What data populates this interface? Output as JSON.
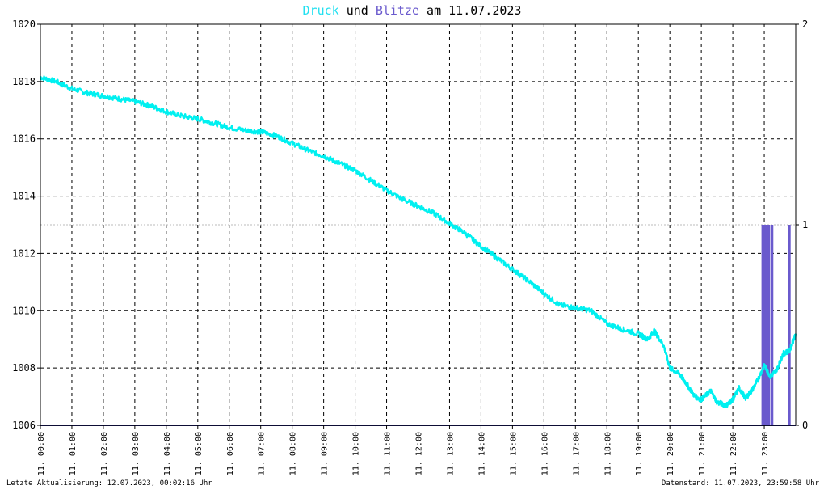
{
  "title": {
    "series1": "Druck",
    "joiner": " und ",
    "series2": "Blitze",
    "suffix": " am 11.07.2023"
  },
  "footer": {
    "left": "Letzte Aktualisierung: 12.07.2023, 00:02:16 Uhr",
    "right": "Datenstand: 11.07.2023, 23:59:58 Uhr"
  },
  "colors": {
    "pressure": "#00f0f0",
    "lightning": "#6a5acd",
    "grid": "#000000",
    "background": "#ffffff"
  },
  "chart_data": {
    "type": "line",
    "left_axis": {
      "label": "",
      "range": [
        1006,
        1020
      ],
      "ticks": [
        1006,
        1008,
        1010,
        1012,
        1014,
        1016,
        1018,
        1020
      ]
    },
    "right_axis": {
      "label": "",
      "range": [
        0,
        2
      ],
      "ticks": [
        0,
        1,
        2
      ]
    },
    "x_range": [
      0,
      24
    ],
    "x_ticks": [
      {
        "x": 0,
        "label": "11. 00:00"
      },
      {
        "x": 1,
        "label": "11. 01:00"
      },
      {
        "x": 2,
        "label": "11. 02:00"
      },
      {
        "x": 3,
        "label": "11. 03:00"
      },
      {
        "x": 4,
        "label": "11. 04:00"
      },
      {
        "x": 5,
        "label": "11. 05:00"
      },
      {
        "x": 6,
        "label": "11. 06:00"
      },
      {
        "x": 7,
        "label": "11. 07:00"
      },
      {
        "x": 8,
        "label": "11. 08:00"
      },
      {
        "x": 9,
        "label": "11. 09:00"
      },
      {
        "x": 10,
        "label": "11. 10:00"
      },
      {
        "x": 11,
        "label": "11. 11:00"
      },
      {
        "x": 12,
        "label": "11. 12:00"
      },
      {
        "x": 13,
        "label": "11. 13:00"
      },
      {
        "x": 14,
        "label": "11. 14:00"
      },
      {
        "x": 15,
        "label": "11. 15:00"
      },
      {
        "x": 16,
        "label": "11. 16:00"
      },
      {
        "x": 17,
        "label": "11. 17:00"
      },
      {
        "x": 18,
        "label": "11. 18:00"
      },
      {
        "x": 19,
        "label": "11. 19:00"
      },
      {
        "x": 20,
        "label": "11. 20:00"
      },
      {
        "x": 21,
        "label": "11. 21:00"
      },
      {
        "x": 22,
        "label": "11. 22:00"
      },
      {
        "x": 23,
        "label": "11. 23:00"
      }
    ],
    "grid": true,
    "series": [
      {
        "name": "Druck",
        "axis": "left",
        "points": [
          [
            0.0,
            1018.15
          ],
          [
            0.5,
            1018.0
          ],
          [
            1.0,
            1017.75
          ],
          [
            1.5,
            1017.6
          ],
          [
            2.0,
            1017.5
          ],
          [
            2.5,
            1017.4
          ],
          [
            3.0,
            1017.3
          ],
          [
            3.5,
            1017.15
          ],
          [
            4.0,
            1016.95
          ],
          [
            4.5,
            1016.8
          ],
          [
            5.0,
            1016.7
          ],
          [
            5.5,
            1016.55
          ],
          [
            6.0,
            1016.4
          ],
          [
            6.5,
            1016.3
          ],
          [
            7.0,
            1016.25
          ],
          [
            7.5,
            1016.1
          ],
          [
            8.0,
            1015.85
          ],
          [
            8.5,
            1015.6
          ],
          [
            9.0,
            1015.4
          ],
          [
            9.5,
            1015.15
          ],
          [
            10.0,
            1014.9
          ],
          [
            10.5,
            1014.55
          ],
          [
            11.0,
            1014.2
          ],
          [
            11.5,
            1013.9
          ],
          [
            12.0,
            1013.65
          ],
          [
            12.5,
            1013.4
          ],
          [
            13.0,
            1013.05
          ],
          [
            13.5,
            1012.7
          ],
          [
            14.0,
            1012.25
          ],
          [
            14.5,
            1011.85
          ],
          [
            15.0,
            1011.45
          ],
          [
            15.5,
            1011.05
          ],
          [
            16.0,
            1010.6
          ],
          [
            16.5,
            1010.2
          ],
          [
            17.0,
            1010.1
          ],
          [
            17.5,
            1010.0
          ],
          [
            18.0,
            1009.55
          ],
          [
            18.5,
            1009.35
          ],
          [
            19.0,
            1009.2
          ],
          [
            19.3,
            1009.0
          ],
          [
            19.5,
            1009.3
          ],
          [
            19.8,
            1008.8
          ],
          [
            20.0,
            1008.0
          ],
          [
            20.3,
            1007.8
          ],
          [
            20.5,
            1007.5
          ],
          [
            20.8,
            1007.0
          ],
          [
            21.0,
            1006.9
          ],
          [
            21.3,
            1007.2
          ],
          [
            21.5,
            1006.8
          ],
          [
            21.8,
            1006.7
          ],
          [
            22.0,
            1006.9
          ],
          [
            22.2,
            1007.3
          ],
          [
            22.4,
            1006.95
          ],
          [
            22.6,
            1007.2
          ],
          [
            22.8,
            1007.6
          ],
          [
            23.0,
            1008.1
          ],
          [
            23.2,
            1007.7
          ],
          [
            23.4,
            1007.95
          ],
          [
            23.6,
            1008.5
          ],
          [
            23.8,
            1008.6
          ],
          [
            24.0,
            1009.2
          ]
        ]
      },
      {
        "name": "Blitze",
        "axis": "right",
        "type": "bar",
        "points": [
          [
            22.95,
            1
          ],
          [
            23.0,
            1
          ],
          [
            23.05,
            1
          ],
          [
            23.1,
            1
          ],
          [
            23.15,
            1
          ],
          [
            23.25,
            1
          ],
          [
            23.8,
            1
          ]
        ]
      }
    ]
  }
}
